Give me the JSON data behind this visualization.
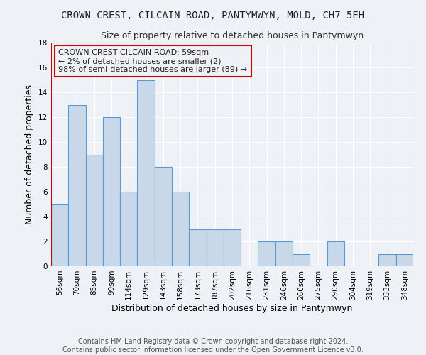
{
  "title": "CROWN CREST, CILCAIN ROAD, PANTYMWYN, MOLD, CH7 5EH",
  "subtitle": "Size of property relative to detached houses in Pantymwyn",
  "xlabel": "Distribution of detached houses by size in Pantymwyn",
  "ylabel": "Number of detached properties",
  "footer_line1": "Contains HM Land Registry data © Crown copyright and database right 2024.",
  "footer_line2": "Contains public sector information licensed under the Open Government Licence v3.0.",
  "categories": [
    "56sqm",
    "70sqm",
    "85sqm",
    "99sqm",
    "114sqm",
    "129sqm",
    "143sqm",
    "158sqm",
    "173sqm",
    "187sqm",
    "202sqm",
    "216sqm",
    "231sqm",
    "246sqm",
    "260sqm",
    "275sqm",
    "290sqm",
    "304sqm",
    "319sqm",
    "333sqm",
    "348sqm"
  ],
  "values": [
    5,
    13,
    9,
    12,
    6,
    15,
    8,
    6,
    3,
    3,
    3,
    0,
    2,
    2,
    1,
    0,
    2,
    0,
    0,
    1,
    1
  ],
  "bar_color": "#c8d8e8",
  "bar_edge_color": "#5b9bd5",
  "highlight_line_color": "#cc0000",
  "ylim": [
    0,
    18
  ],
  "yticks": [
    0,
    2,
    4,
    6,
    8,
    10,
    12,
    14,
    16,
    18
  ],
  "annotation_box_text": "CROWN CREST CILCAIN ROAD: 59sqm\n← 2% of detached houses are smaller (2)\n98% of semi-detached houses are larger (89) →",
  "annotation_box_color": "#cc0000",
  "bg_color": "#eef2f7",
  "grid_color": "#ffffff",
  "title_fontsize": 10,
  "subtitle_fontsize": 9,
  "xlabel_fontsize": 9,
  "ylabel_fontsize": 9,
  "tick_fontsize": 7.5,
  "annotation_fontsize": 8,
  "footer_fontsize": 7
}
